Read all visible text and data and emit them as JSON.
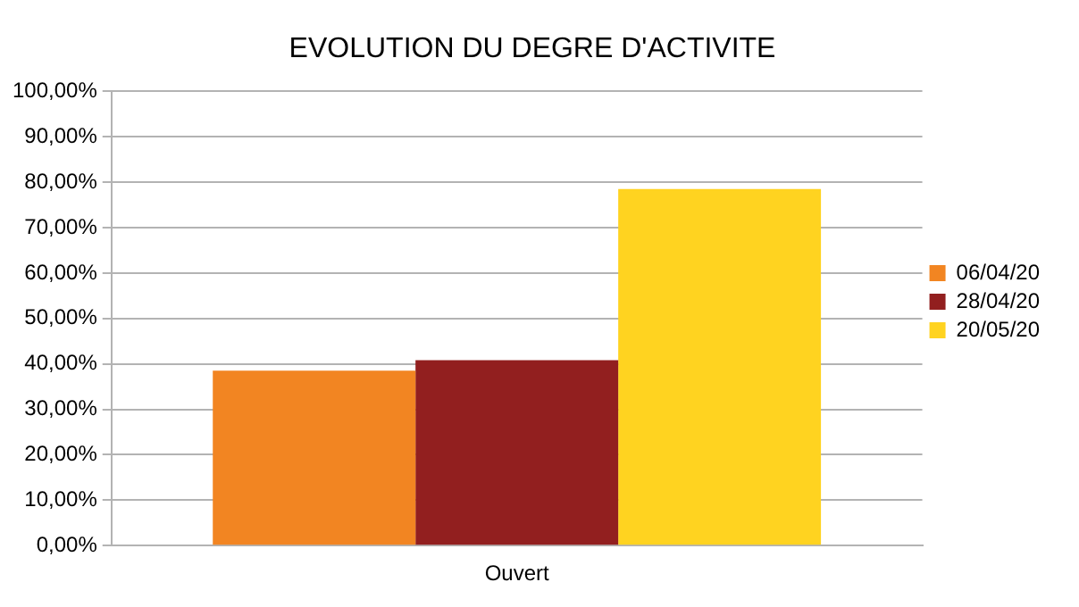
{
  "chart_data": {
    "type": "bar",
    "title": "EVOLUTION DU DEGRE D'ACTIVITE",
    "categories": [
      "Ouvert"
    ],
    "series": [
      {
        "name": "06/04/20",
        "color": "#f28522",
        "values": [
          38.5
        ]
      },
      {
        "name": "28/04/20",
        "color": "#921f1f",
        "values": [
          40.8
        ]
      },
      {
        "name": "20/05/20",
        "color": "#ffd320",
        "values": [
          78.5
        ]
      }
    ],
    "ylim": [
      0,
      100
    ],
    "yticks": [
      {
        "value": 0,
        "label": "0,00%"
      },
      {
        "value": 10,
        "label": "10,00%"
      },
      {
        "value": 20,
        "label": "20,00%"
      },
      {
        "value": 30,
        "label": "30,00%"
      },
      {
        "value": 40,
        "label": "40,00%"
      },
      {
        "value": 50,
        "label": "50,00%"
      },
      {
        "value": 60,
        "label": "60,00%"
      },
      {
        "value": 70,
        "label": "70,00%"
      },
      {
        "value": 80,
        "label": "80,00%"
      },
      {
        "value": 90,
        "label": "90,00%"
      },
      {
        "value": 100,
        "label": "100,00%"
      }
    ],
    "grid": "y",
    "legend": "right"
  }
}
